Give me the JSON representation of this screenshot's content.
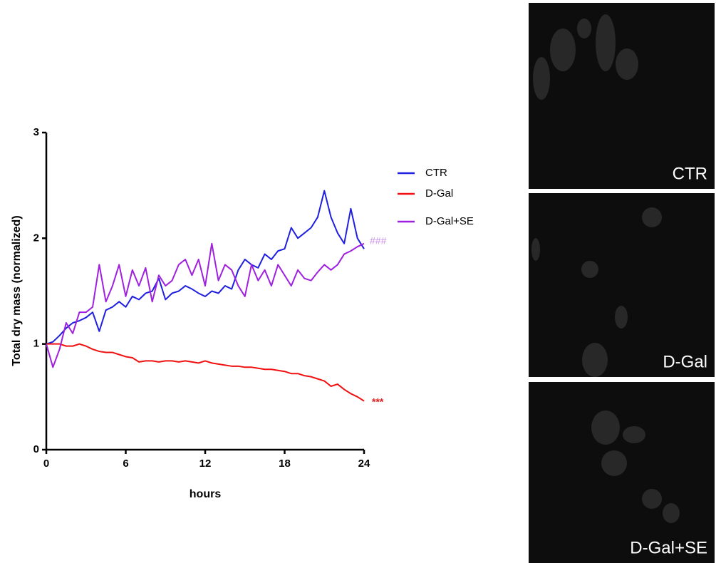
{
  "chart_data": {
    "type": "line",
    "y_label": "Total dry mass (normalized)",
    "x_label": "hours",
    "x": [
      0,
      0.5,
      1,
      1.5,
      2,
      2.5,
      3,
      3.5,
      4,
      4.5,
      5,
      5.5,
      6,
      6.5,
      7,
      7.5,
      8,
      8.5,
      9,
      9.5,
      10,
      10.5,
      11,
      11.5,
      12,
      12.5,
      13,
      13.5,
      14,
      14.5,
      15,
      15.5,
      16,
      16.5,
      17,
      17.5,
      18,
      18.5,
      19,
      19.5,
      20,
      20.5,
      21,
      21.5,
      22,
      22.5,
      23,
      23.5,
      24
    ],
    "series": [
      {
        "name": "CTR",
        "color": "#1f1fe0",
        "values": [
          1.0,
          1.02,
          1.08,
          1.15,
          1.2,
          1.22,
          1.25,
          1.3,
          1.12,
          1.32,
          1.35,
          1.4,
          1.35,
          1.45,
          1.42,
          1.48,
          1.5,
          1.62,
          1.42,
          1.48,
          1.5,
          1.55,
          1.52,
          1.48,
          1.45,
          1.5,
          1.48,
          1.55,
          1.52,
          1.7,
          1.8,
          1.75,
          1.72,
          1.85,
          1.8,
          1.88,
          1.9,
          2.1,
          2.0,
          2.05,
          2.1,
          2.2,
          2.45,
          2.2,
          2.05,
          1.95,
          2.28,
          2.0,
          1.9
        ]
      },
      {
        "name": "D-Gal",
        "color": "#f01010",
        "values": [
          1.0,
          1.0,
          1.0,
          0.98,
          0.98,
          1.0,
          0.98,
          0.95,
          0.93,
          0.92,
          0.92,
          0.9,
          0.88,
          0.87,
          0.83,
          0.84,
          0.84,
          0.83,
          0.84,
          0.84,
          0.83,
          0.84,
          0.83,
          0.82,
          0.84,
          0.82,
          0.81,
          0.8,
          0.79,
          0.79,
          0.78,
          0.78,
          0.77,
          0.76,
          0.76,
          0.75,
          0.74,
          0.72,
          0.72,
          0.7,
          0.69,
          0.67,
          0.65,
          0.6,
          0.62,
          0.57,
          0.53,
          0.5,
          0.46
        ]
      },
      {
        "name": "D-Gal+SE",
        "color": "#a020e0",
        "values": [
          1.0,
          0.78,
          0.95,
          1.2,
          1.1,
          1.3,
          1.3,
          1.35,
          1.75,
          1.4,
          1.55,
          1.75,
          1.45,
          1.7,
          1.55,
          1.72,
          1.4,
          1.65,
          1.55,
          1.6,
          1.75,
          1.8,
          1.65,
          1.8,
          1.55,
          1.95,
          1.6,
          1.75,
          1.7,
          1.55,
          1.45,
          1.75,
          1.6,
          1.7,
          1.55,
          1.75,
          1.65,
          1.55,
          1.7,
          1.62,
          1.6,
          1.68,
          1.75,
          1.7,
          1.75,
          1.85,
          1.88,
          1.92,
          1.95
        ]
      }
    ],
    "annotations": [
      {
        "text": "###",
        "color": "#c890e8"
      },
      {
        "text": "***",
        "color": "#e02020"
      }
    ],
    "xlim": [
      0,
      24
    ],
    "xticks": [
      0,
      6,
      12,
      18,
      24
    ],
    "ylim": [
      0,
      3
    ],
    "yticks": [
      0,
      1,
      2,
      3
    ],
    "grid": false
  },
  "panels": [
    {
      "label": "CTR"
    },
    {
      "label": "D-Gal"
    },
    {
      "label": "D-Gal+SE"
    }
  ]
}
